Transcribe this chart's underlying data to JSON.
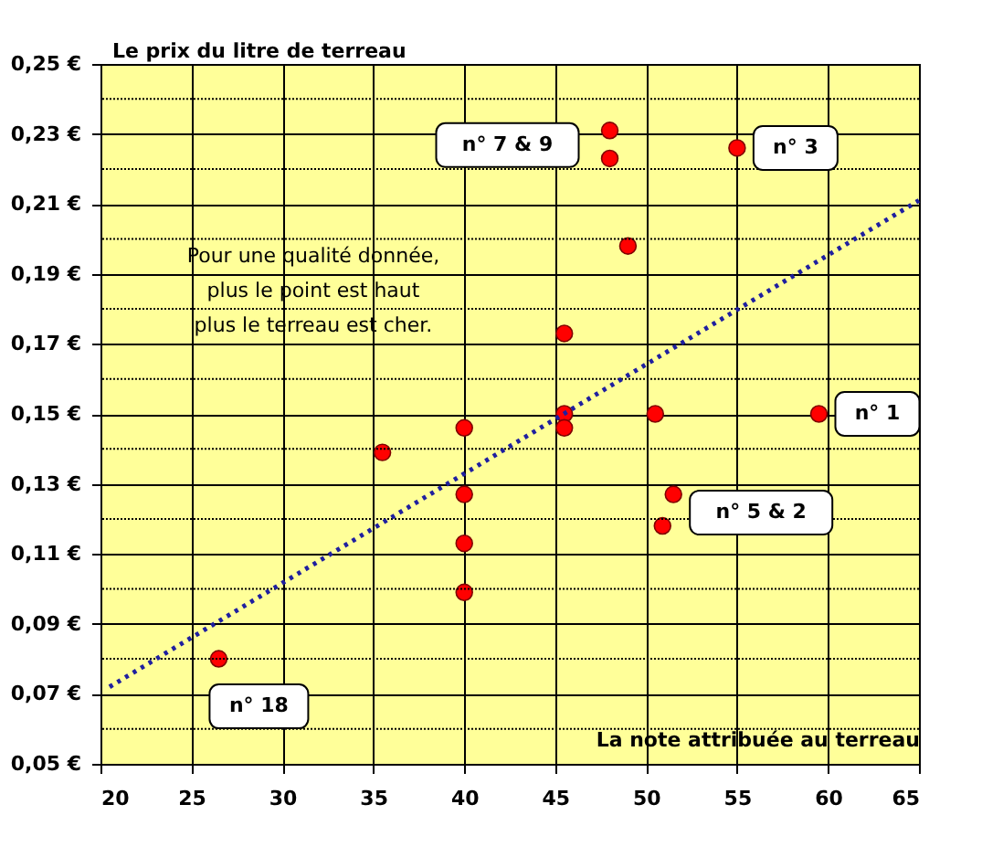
{
  "chart_data": {
    "type": "scatter",
    "ylabel": "Le prix du litre de terreau",
    "xlabel": "La note attribuée au terreau",
    "xlim": [
      20,
      65
    ],
    "xticks": [
      20,
      25,
      30,
      35,
      40,
      45,
      50,
      55,
      60,
      65
    ],
    "ylim": [
      0.05,
      0.25
    ],
    "yticks": [
      {
        "value": 0.05,
        "label": "0,05 €"
      },
      {
        "value": 0.06,
        "label": null
      },
      {
        "value": 0.07,
        "label": "0,07 €"
      },
      {
        "value": 0.08,
        "label": null
      },
      {
        "value": 0.09,
        "label": "0,09 €"
      },
      {
        "value": 0.1,
        "label": null
      },
      {
        "value": 0.11,
        "label": "0,11 €"
      },
      {
        "value": 0.12,
        "label": null
      },
      {
        "value": 0.13,
        "label": "0,13 €"
      },
      {
        "value": 0.14,
        "label": null
      },
      {
        "value": 0.15,
        "label": "0,15 €"
      },
      {
        "value": 0.16,
        "label": null
      },
      {
        "value": 0.17,
        "label": "0,17 €"
      },
      {
        "value": 0.18,
        "label": null
      },
      {
        "value": 0.19,
        "label": "0,19 €"
      },
      {
        "value": 0.2,
        "label": null
      },
      {
        "value": 0.21,
        "label": "0,21 €"
      },
      {
        "value": 0.22,
        "label": null
      },
      {
        "value": 0.23,
        "label": "0,23 €"
      },
      {
        "value": 0.24,
        "label": null
      },
      {
        "value": 0.25,
        "label": "0,25 €"
      }
    ],
    "grid": true,
    "series": [
      {
        "type": "scatter",
        "marker": "circle",
        "color": "#ff0000",
        "x": [
          26.5,
          35.5,
          40,
          40,
          40,
          40,
          45.5,
          45.5,
          45.5,
          48,
          48,
          49,
          50.5,
          51.5,
          50.9,
          55,
          59.5
        ],
        "values": [
          0.08,
          0.139,
          0.146,
          0.127,
          0.113,
          0.099,
          0.173,
          0.15,
          0.146,
          0.231,
          0.223,
          0.198,
          0.15,
          0.127,
          0.118,
          0.226,
          0.15
        ]
      },
      {
        "type": "line",
        "color": "#1f1f9f",
        "line_style": "dotted",
        "x": [
          20.5,
          65
        ],
        "values": [
          0.072,
          0.211
        ]
      }
    ],
    "annotations": [
      {
        "text": "Pour une qualité donnée,\nplus le point est haut\nplus le terreau est cher."
      },
      {
        "text": "n° 18",
        "x": 26.5,
        "y": 0.08
      },
      {
        "text": "n° 7 & 9",
        "x": 48,
        "y": 0.231
      },
      {
        "text": "n° 3",
        "x": 55,
        "y": 0.226
      },
      {
        "text": "n° 1",
        "x": 59.5,
        "y": 0.15
      },
      {
        "text": "n° 5 & 2",
        "x": 51.5,
        "y": 0.127
      }
    ]
  }
}
